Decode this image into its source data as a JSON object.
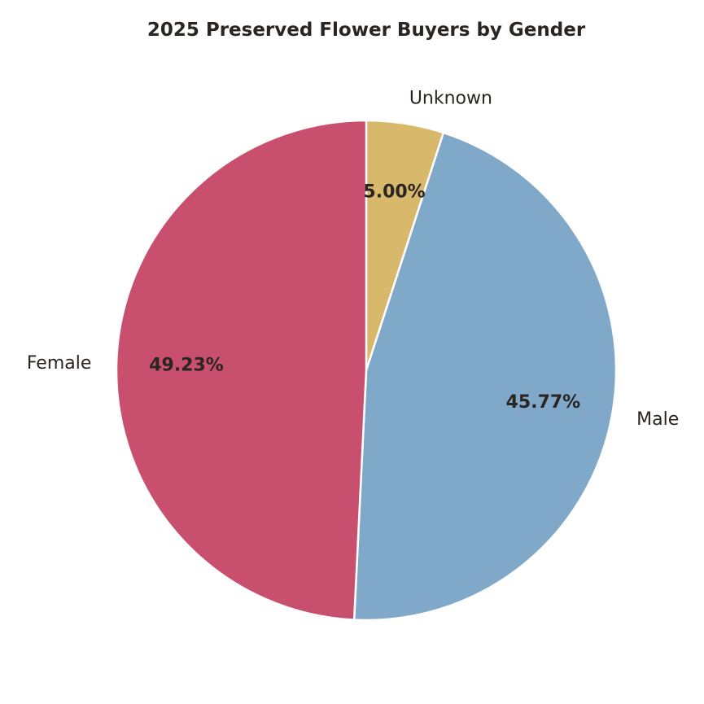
{
  "chart_data": {
    "type": "pie",
    "title": "2025 Preserved Flower Buyers by Gender",
    "slices": [
      {
        "label": "Unknown",
        "value": 5.0,
        "pct_label": "5.00%",
        "color": "#d8b86a"
      },
      {
        "label": "Male",
        "value": 45.77,
        "pct_label": "45.77%",
        "color": "#80a8c9"
      },
      {
        "label": "Female",
        "value": 49.23,
        "pct_label": "49.23%",
        "color": "#c8506e"
      }
    ],
    "start_angle_deg": 90,
    "direction": "clockwise",
    "legend": "none"
  }
}
